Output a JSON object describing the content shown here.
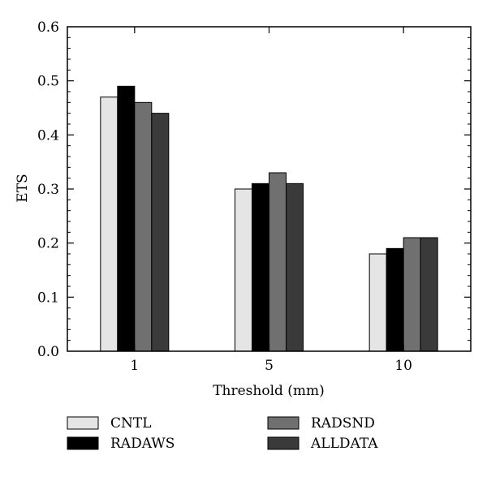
{
  "chart_data": {
    "type": "bar",
    "title": "",
    "xlabel": "Threshold (mm)",
    "ylabel": "ETS",
    "categories": [
      "1",
      "5",
      "10"
    ],
    "ylim": [
      0,
      0.6
    ],
    "yticks": [
      "0.0",
      "0.1",
      "0.2",
      "0.3",
      "0.4",
      "0.5",
      "0.6"
    ],
    "grid": false,
    "legend_position": "bottom",
    "series": [
      {
        "name": "CNTL",
        "color": "#e5e5e5",
        "values": [
          0.47,
          0.3,
          0.18
        ]
      },
      {
        "name": "RADAWS",
        "color": "#000000",
        "values": [
          0.49,
          0.31,
          0.19
        ]
      },
      {
        "name": "RADSND",
        "color": "#707070",
        "values": [
          0.46,
          0.33,
          0.21
        ]
      },
      {
        "name": "ALLDATA",
        "color": "#3a3a3a",
        "values": [
          0.44,
          0.31,
          0.21
        ]
      }
    ]
  }
}
